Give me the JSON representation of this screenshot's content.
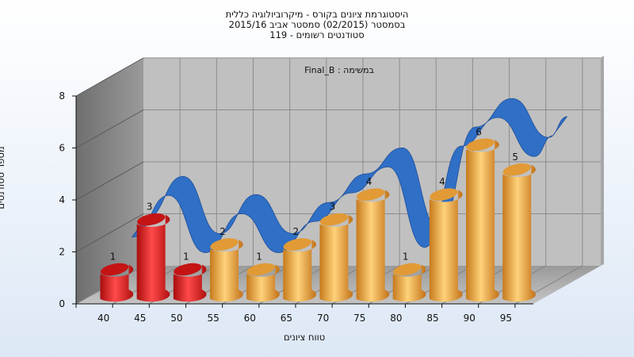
{
  "header": {
    "title_lines": [
      "היסטוגרמת ציונים בקורס - מיקרוביולוגיה כללית",
      "בסמסטר  (02/2015)  סמסטר אביב 2015/16",
      "סטודנטים רשומים - 119"
    ]
  },
  "colors": {
    "low_bar": "#e02525",
    "high_bar": "#eba742",
    "ribbon": "#2f6fc6",
    "background": "#dde8f6"
  },
  "chart_data": {
    "type": "bar",
    "title": "במשימה : Final_B",
    "xlabel": "טווח ציונים",
    "ylabel": "מספר סטודנטים",
    "categories": [
      "40",
      "45",
      "50",
      "55",
      "60",
      "65",
      "70",
      "75",
      "80",
      "85",
      "90",
      "95"
    ],
    "series": [
      {
        "values": [
          1,
          3,
          1,
          2,
          1,
          2,
          3,
          4,
          1,
          4,
          6,
          5
        ],
        "color_by_category": [
          "red",
          "red",
          "red",
          "orange",
          "orange",
          "orange",
          "orange",
          "orange",
          "orange",
          "orange",
          "orange",
          "orange"
        ]
      }
    ],
    "trend_line": {
      "style": "3d-ribbon",
      "values": [
        1.9,
        3.5,
        1.3,
        2.8,
        1.3,
        2.5,
        3.6,
        4.6,
        1.5,
        5.4,
        6.5,
        5.0
      ]
    },
    "ylim": [
      0,
      8
    ],
    "yticks": [
      0,
      2,
      4,
      6,
      8
    ],
    "grid": true,
    "data_labels": true,
    "legend": "none"
  }
}
